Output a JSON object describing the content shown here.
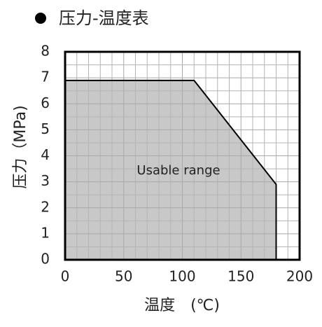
{
  "chart_data": {
    "type": "area",
    "title": "压力-温度表",
    "x_label": "温度　(℃)",
    "y_label": "压力（MPa)",
    "annotation": "Usable range",
    "x": [
      0,
      110,
      180,
      180
    ],
    "values": [
      6.9,
      6.9,
      2.9,
      0
    ],
    "color": "#c8c8c8",
    "xlim": [
      0,
      200
    ],
    "xticks": [
      0,
      50,
      100,
      150,
      200
    ],
    "ylim": [
      0,
      8
    ],
    "yticks": [
      0,
      1,
      2,
      3,
      4,
      5,
      6,
      7,
      8
    ],
    "grid": true,
    "grid_subdivisions": {
      "x": 5,
      "y": 2
    }
  }
}
